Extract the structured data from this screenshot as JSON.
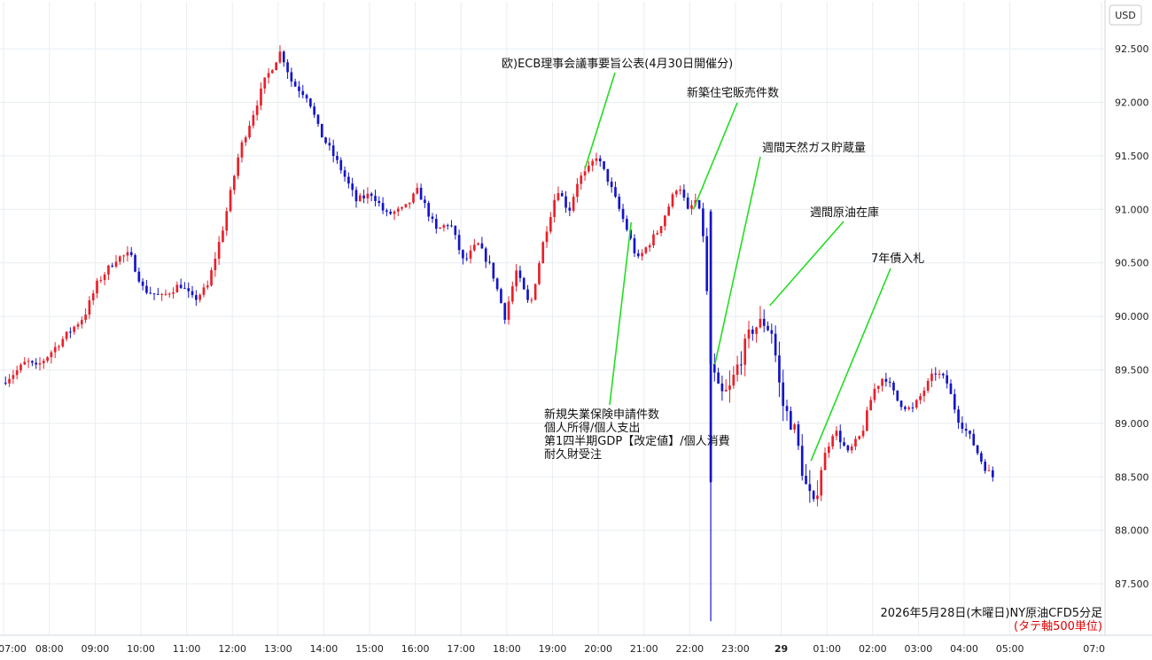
{
  "chart_data": {
    "type": "candlestick",
    "currency_label": "USD",
    "caption": {
      "title": "2026年5月28日(木曜日)NY原油CFD5分足",
      "subtitle": "(タテ軸500単位)"
    },
    "y_ticks": [
      "92.500",
      "92.000",
      "91.500",
      "91.000",
      "90.500",
      "90.000",
      "89.500",
      "89.000",
      "88.500",
      "88.000",
      "87.500"
    ],
    "y_tick_values": [
      92.5,
      92.0,
      91.5,
      91.0,
      90.5,
      90.0,
      89.5,
      89.0,
      88.5,
      88.0,
      87.5
    ],
    "ylim": [
      87.02,
      92.94
    ],
    "x_ticks": [
      "07:00",
      "08:00",
      "09:00",
      "10:00",
      "11:00",
      "12:00",
      "13:00",
      "14:00",
      "15:00",
      "16:00",
      "17:00",
      "18:00",
      "19:00",
      "20:00",
      "21:00",
      "22:00",
      "23:00",
      "29",
      "01:00",
      "02:00",
      "03:00",
      "04:00",
      "05:00",
      "07:0"
    ],
    "x_tick_hours": [
      0,
      1,
      2,
      3,
      4,
      5,
      6,
      7,
      8,
      9,
      10,
      11,
      12,
      13,
      14,
      15,
      16,
      17,
      18,
      19,
      20,
      21,
      22,
      24
    ],
    "x_range_hours": [
      -0.08,
      24.08
    ],
    "grid": true,
    "colors": {
      "up": "#e8202a",
      "down": "#1414c8",
      "callout": "#22dd22",
      "grid": "#e8eef2"
    },
    "price_anchors": [
      [
        0.0,
        89.38
      ],
      [
        0.3,
        89.48
      ],
      [
        0.55,
        89.58
      ],
      [
        0.75,
        89.52
      ],
      [
        1.0,
        89.63
      ],
      [
        1.4,
        89.82
      ],
      [
        1.8,
        90.0
      ],
      [
        2.1,
        90.32
      ],
      [
        2.5,
        90.54
      ],
      [
        2.8,
        90.58
      ],
      [
        3.1,
        90.25
      ],
      [
        3.5,
        90.18
      ],
      [
        3.9,
        90.3
      ],
      [
        4.2,
        90.15
      ],
      [
        4.5,
        90.28
      ],
      [
        4.85,
        90.85
      ],
      [
        5.2,
        91.55
      ],
      [
        5.5,
        91.9
      ],
      [
        5.75,
        92.2
      ],
      [
        6.1,
        92.48
      ],
      [
        6.35,
        92.18
      ],
      [
        6.7,
        92.05
      ],
      [
        6.95,
        91.72
      ],
      [
        7.15,
        91.58
      ],
      [
        7.45,
        91.35
      ],
      [
        7.75,
        91.08
      ],
      [
        8.1,
        91.15
      ],
      [
        8.4,
        90.95
      ],
      [
        8.8,
        91.0
      ],
      [
        9.1,
        91.18
      ],
      [
        9.5,
        90.8
      ],
      [
        9.8,
        90.88
      ],
      [
        10.1,
        90.5
      ],
      [
        10.4,
        90.68
      ],
      [
        10.7,
        90.45
      ],
      [
        11.0,
        90.0
      ],
      [
        11.25,
        90.42
      ],
      [
        11.55,
        90.08
      ],
      [
        11.85,
        90.72
      ],
      [
        12.15,
        91.2
      ],
      [
        12.4,
        90.98
      ],
      [
        12.6,
        91.28
      ],
      [
        12.8,
        91.35
      ],
      [
        13.0,
        91.5
      ],
      [
        13.25,
        91.28
      ],
      [
        13.5,
        91.0
      ],
      [
        13.7,
        90.78
      ],
      [
        13.9,
        90.52
      ],
      [
        14.1,
        90.65
      ],
      [
        14.35,
        90.8
      ],
      [
        14.6,
        91.05
      ],
      [
        14.8,
        91.25
      ],
      [
        15.0,
        90.98
      ],
      [
        15.2,
        91.1
      ],
      [
        15.35,
        90.72
      ],
      [
        15.5,
        89.55
      ],
      [
        15.7,
        89.25
      ],
      [
        15.9,
        89.3
      ],
      [
        16.1,
        89.55
      ],
      [
        16.4,
        89.88
      ],
      [
        16.65,
        89.95
      ],
      [
        16.85,
        89.85
      ],
      [
        17.05,
        89.2
      ],
      [
        17.35,
        88.92
      ],
      [
        17.55,
        88.45
      ],
      [
        17.75,
        88.22
      ],
      [
        17.95,
        88.65
      ],
      [
        18.2,
        88.95
      ],
      [
        18.5,
        88.72
      ],
      [
        18.8,
        88.9
      ],
      [
        19.05,
        89.3
      ],
      [
        19.3,
        89.45
      ],
      [
        19.6,
        89.2
      ],
      [
        19.9,
        89.12
      ],
      [
        20.15,
        89.3
      ],
      [
        20.4,
        89.48
      ],
      [
        20.65,
        89.4
      ],
      [
        20.9,
        89.05
      ],
      [
        21.2,
        88.85
      ],
      [
        21.45,
        88.62
      ],
      [
        21.65,
        88.5
      ]
    ],
    "events": [
      {
        "label": "欧)ECB理事会議事要旨公表(4月30日開催分)",
        "hour": 12.71,
        "price": 91.38
      },
      {
        "label": "新築住宅販売件数",
        "hour": 15.08,
        "price": 91.0
      },
      {
        "label": "週間天然ガス貯蔵量",
        "hour": 15.55,
        "price": 89.55
      },
      {
        "label": "週間原油在庫",
        "hour": 16.75,
        "price": 90.1
      },
      {
        "label": "7年債入札",
        "hour": 17.65,
        "price": 88.65
      },
      {
        "label": "新規失業保険申請件数",
        "hour": 13.72,
        "price": 90.88
      },
      {
        "label": "個人所得/個人支出",
        "hour": null,
        "price": null
      },
      {
        "label": "第1四半期GDP【改定値】/個人消費",
        "hour": null,
        "price": null
      },
      {
        "label": "耐久財受注",
        "hour": null,
        "price": null
      }
    ]
  }
}
